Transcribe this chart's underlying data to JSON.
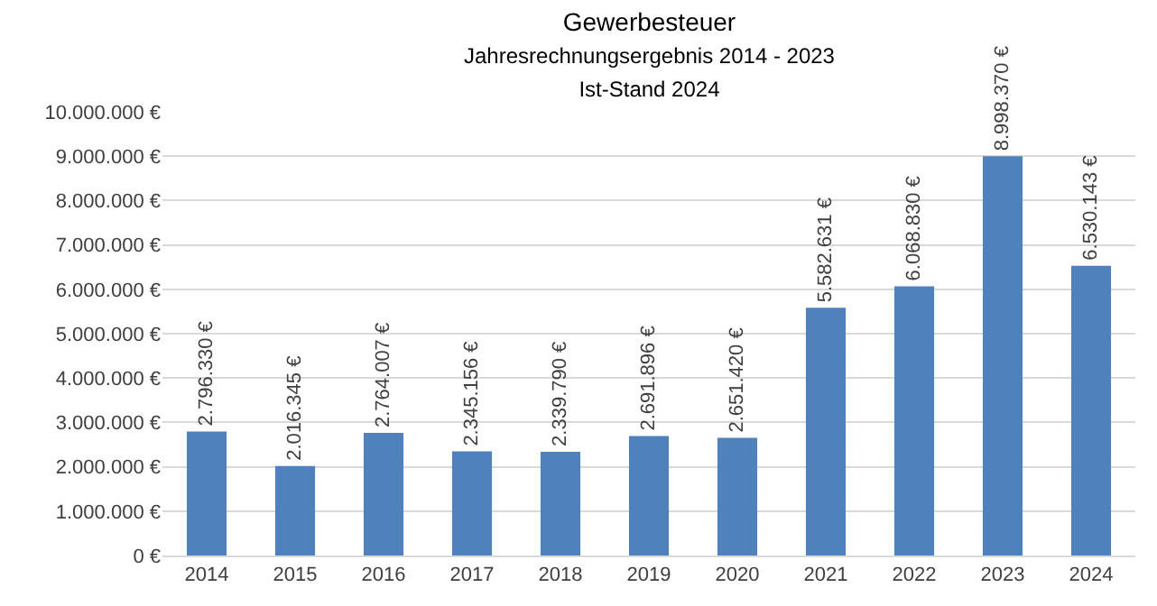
{
  "chart_data": {
    "type": "bar",
    "title": "Gewerbesteuer",
    "subtitle": "Jahresrechnungsergebnis 2014 - 2023\nIst-Stand 2024",
    "categories": [
      "2014",
      "2015",
      "2016",
      "2017",
      "2018",
      "2019",
      "2020",
      "2021",
      "2022",
      "2023",
      "2024"
    ],
    "series": [
      {
        "color": "#4f81bd",
        "values": [
          2796330,
          2016345,
          2764007,
          2345156,
          2339790,
          2691896,
          2651420,
          5582631,
          6068830,
          8998370,
          6530143
        ],
        "value_labels": [
          "2.796.330 €",
          "2.016.345 €",
          "2.764.007 €",
          "2.345.156 €",
          "2.339.790 €",
          "2.691.896 €",
          "2.651.420 €",
          "5.582.631 €",
          "6.068.830 €",
          "8.998.370 €",
          "6.530.143 €"
        ]
      }
    ],
    "ylim": [
      0,
      10000000
    ],
    "yticks": [
      {
        "value": 0,
        "label": "0 €"
      },
      {
        "value": 1000000,
        "label": "1.000.000 €"
      },
      {
        "value": 2000000,
        "label": "2.000.000 €"
      },
      {
        "value": 3000000,
        "label": "3.000.000 €"
      },
      {
        "value": 4000000,
        "label": "4.000.000 €"
      },
      {
        "value": 5000000,
        "label": "5.000.000 €"
      },
      {
        "value": 6000000,
        "label": "6.000.000 €"
      },
      {
        "value": 7000000,
        "label": "7.000.000 €"
      },
      {
        "value": 8000000,
        "label": "8.000.000 €"
      },
      {
        "value": 9000000,
        "label": "9.000.000 €"
      },
      {
        "value": 10000000,
        "label": "10.000.000 €"
      }
    ],
    "grid": "y"
  }
}
